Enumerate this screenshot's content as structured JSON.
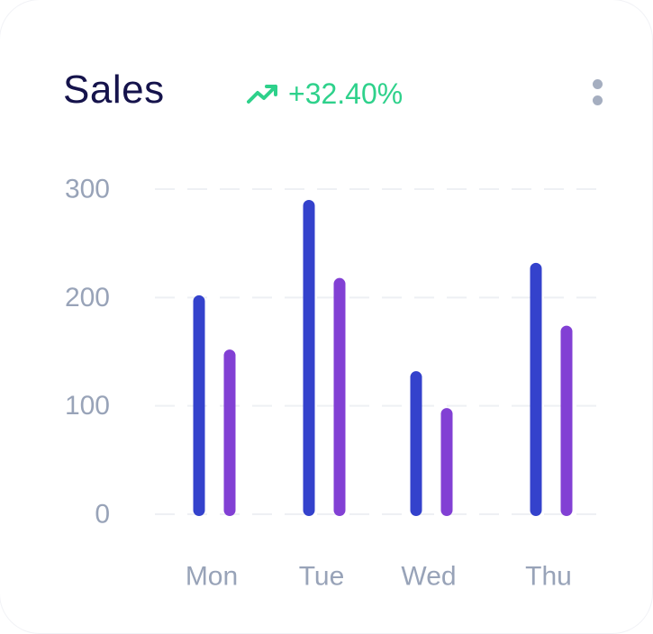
{
  "header": {
    "title": "Sales",
    "trend_value": "+32.40%",
    "trend_icon": "trending-up-icon",
    "menu_icon": "more-vertical-icon"
  },
  "colors": {
    "series_1": "#3442cc",
    "series_2": "#8240d4",
    "trend": "#2ed18b",
    "gridline": "#eef0f4",
    "tick": "#98a3b8"
  },
  "chart_data": {
    "type": "bar",
    "categories": [
      "Mon",
      "Tue",
      "Wed",
      "Thu"
    ],
    "series": [
      {
        "values": [
          202,
          290,
          132,
          232
        ]
      },
      {
        "values": [
          152,
          218,
          98,
          174
        ]
      }
    ],
    "yticks": [
      0,
      100,
      200,
      300
    ],
    "ylim": [
      0,
      300
    ],
    "grid": true,
    "legend": "none"
  }
}
